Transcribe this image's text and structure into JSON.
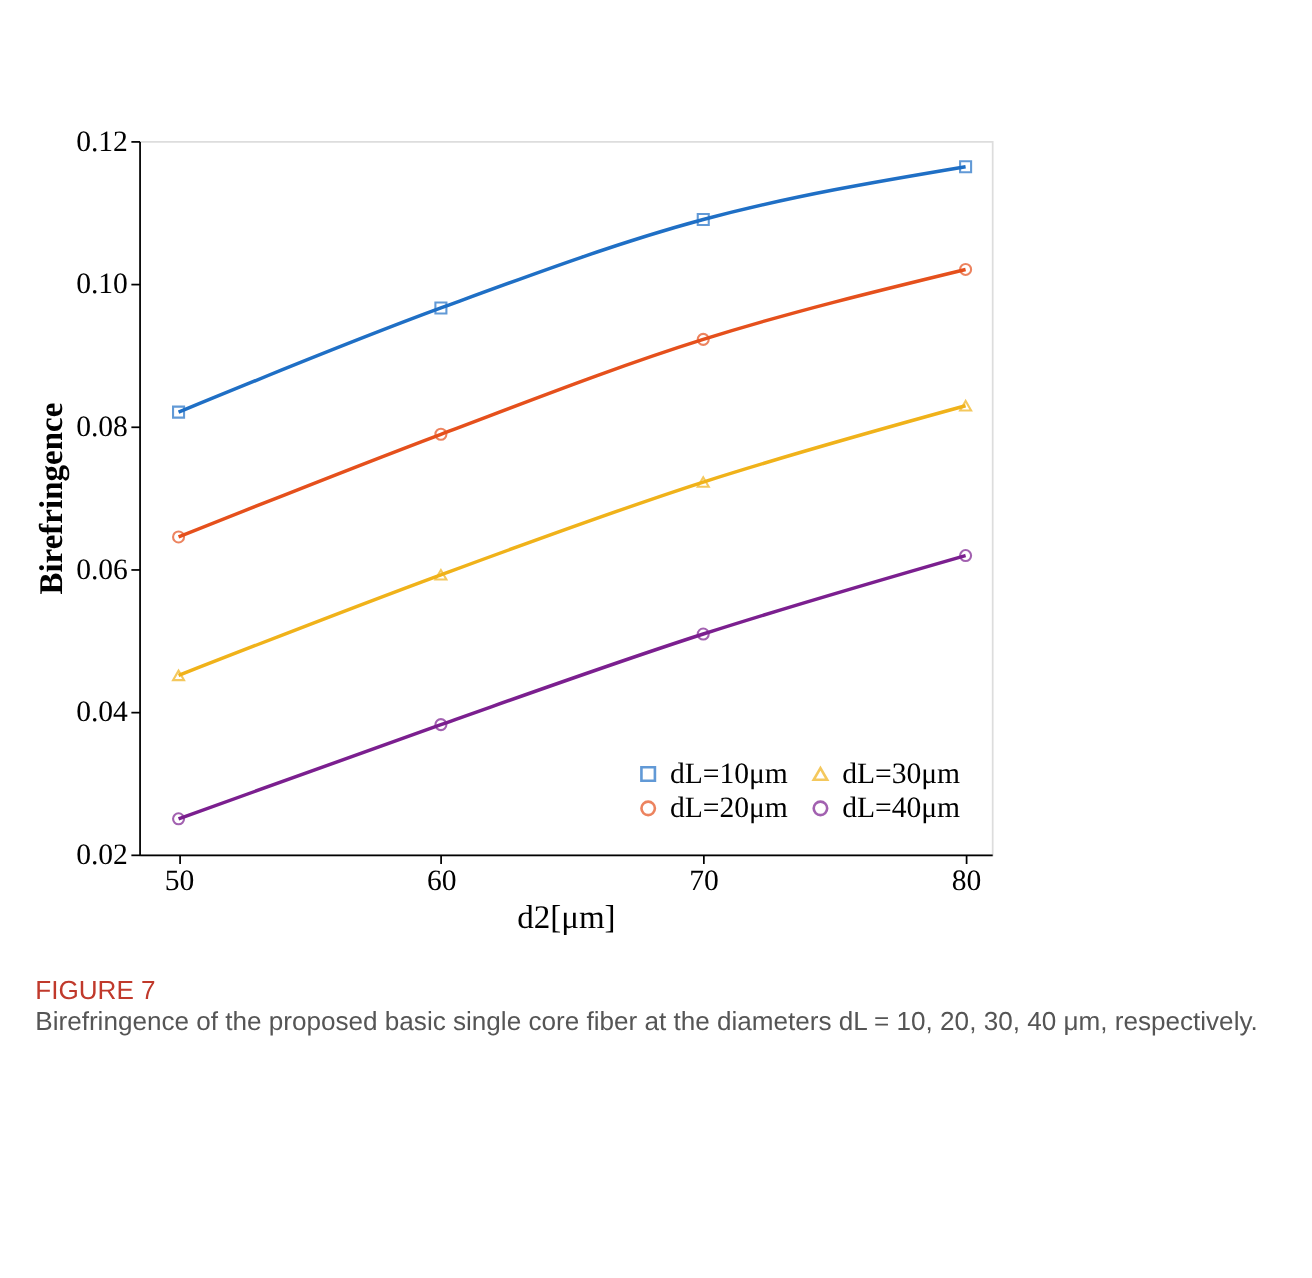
{
  "chart_data": {
    "type": "line",
    "title": "FIGURE 7",
    "subtitle": "Birefringence of the proposed basic single core fiber at the diameters dL = 10, 20, 30, 40 μm, respectively.",
    "xlabel": "d2[μm]",
    "ylabel": "Birefringence",
    "x": [
      50,
      60,
      70,
      80
    ],
    "series": [
      {
        "name": "dL=10μm",
        "color": "#1f6fc5",
        "marker": "square",
        "values": [
          0.082,
          0.0966,
          0.109,
          0.1164
        ]
      },
      {
        "name": "dL=20μm",
        "color": "#e5501c",
        "marker": "circle",
        "values": [
          0.0645,
          0.0789,
          0.0922,
          0.102
        ]
      },
      {
        "name": "dL=30μm",
        "color": "#f0b21a",
        "marker": "triangle",
        "values": [
          0.0451,
          0.0592,
          0.0722,
          0.0829
        ]
      },
      {
        "name": "dL=40μm",
        "color": "#7b1f8f",
        "marker": "circle",
        "values": [
          0.025,
          0.0382,
          0.0509,
          0.0619
        ]
      }
    ],
    "xlim": [
      48.5,
      81
    ],
    "xticks": [
      50,
      60,
      70,
      80
    ],
    "ylim": [
      0.02,
      0.12
    ],
    "yticks": [
      0.02,
      0.04,
      0.06,
      0.08,
      {
        "value": 0.1,
        "label": "0.10"
      },
      0.12
    ],
    "grid": false,
    "legend": "bottom right",
    "line_style": "solid"
  }
}
